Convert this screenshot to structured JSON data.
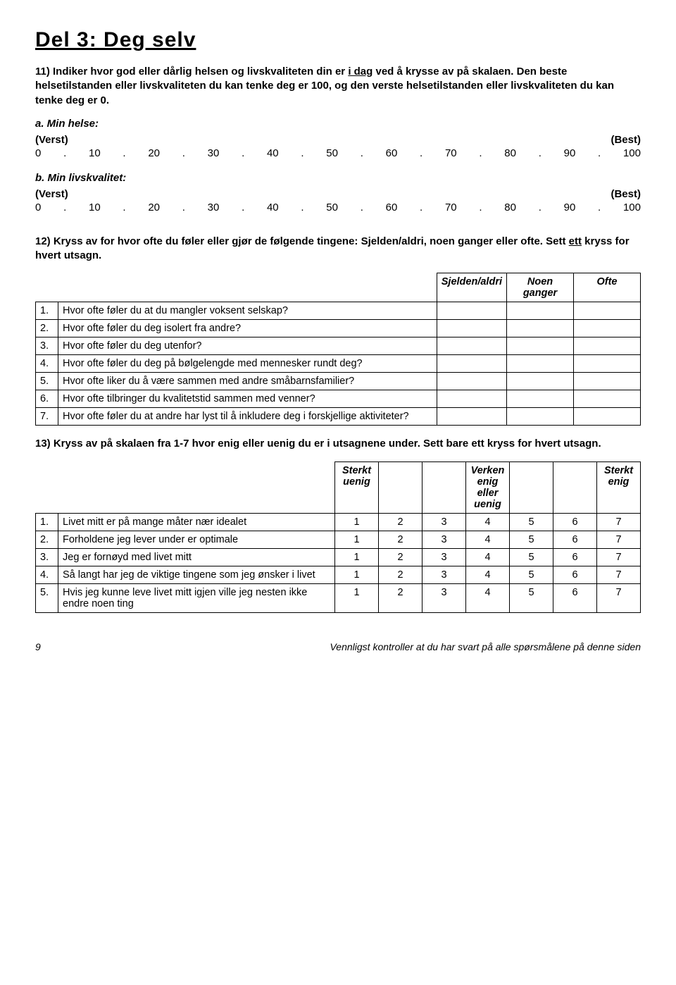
{
  "title": "Del 3: Deg selv",
  "q11": {
    "prefix": "11) Indiker hvor god eller dårlig helsen og livskvaliteten din er ",
    "underlined": "i dag",
    "suffix": " ved å krysse av på skalaen. Den beste helsetilstanden eller livskvaliteten du kan tenke deg er 100, og den verste helsetilstanden eller livskvaliteten du kan tenke deg er 0."
  },
  "scale": {
    "a_label": "a. Min helse:",
    "b_label": "b. Min livskvalitet:",
    "worst": "(Verst)",
    "best": "(Best)",
    "values": [
      "0",
      "10",
      "20",
      "30",
      "40",
      "50",
      "60",
      "70",
      "80",
      "90",
      "100"
    ]
  },
  "q12": {
    "prefix": "12) Kryss av for hvor ofte du føler eller gjør de følgende tingene: Sjelden/aldri, noen ganger eller ofte. Sett ",
    "underlined": "ett",
    "suffix": " kryss for hvert utsagn.",
    "headers": [
      "Sjelden/aldri",
      "Noen ganger",
      "Ofte"
    ],
    "rows": [
      {
        "n": "1.",
        "t": "Hvor ofte føler du at du mangler voksent selskap?"
      },
      {
        "n": "2.",
        "t": "Hvor ofte føler du deg isolert fra andre?"
      },
      {
        "n": "3.",
        "t": "Hvor ofte føler du deg utenfor?"
      },
      {
        "n": "4.",
        "t": "Hvor ofte føler du deg på bølgelengde med mennesker rundt deg?"
      },
      {
        "n": "5.",
        "t": "Hvor ofte liker du å være sammen med andre småbarnsfamilier?"
      },
      {
        "n": "6.",
        "t": "Hvor ofte tilbringer du kvalitetstid sammen med venner?"
      },
      {
        "n": "7.",
        "t": "Hvor ofte føler du at andre har lyst til å inkludere deg i forskjellige aktiviteter?"
      }
    ]
  },
  "q13": {
    "text": "13) Kryss av på skalaen fra 1-7 hvor enig eller uenig du er i utsagnene under. Sett bare ett kryss for hvert utsagn.",
    "headers": {
      "h1": "Sterkt uenig",
      "h4": "Verken enig eller uenig",
      "h7": "Sterkt enig"
    },
    "scale": [
      "1",
      "2",
      "3",
      "4",
      "5",
      "6",
      "7"
    ],
    "rows": [
      {
        "n": "1.",
        "t": "Livet mitt er på mange måter nær idealet"
      },
      {
        "n": "2.",
        "t": "Forholdene jeg lever under er optimale"
      },
      {
        "n": "3.",
        "t": "Jeg er fornøyd med livet mitt"
      },
      {
        "n": "4.",
        "t": "Så langt har jeg de viktige tingene som jeg ønsker i livet"
      },
      {
        "n": "5.",
        "t": "Hvis jeg kunne leve livet mitt igjen ville jeg nesten ikke endre noen ting"
      }
    ]
  },
  "footer": {
    "page": "9",
    "note": "Vennligst kontroller at du har svart på alle spørsmålene på denne siden"
  }
}
